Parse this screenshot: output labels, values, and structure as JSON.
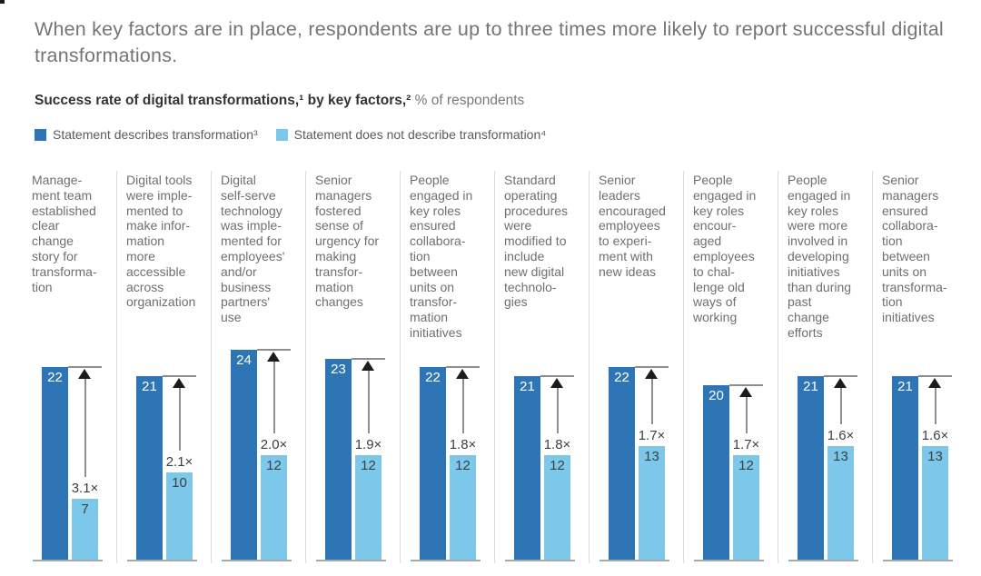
{
  "page": {
    "title": "When key factors are in place, respondents are up to three times more likely to report successful digital transformations.",
    "subtitle_bold": "Success rate of digital transformations,¹ by key factors,²",
    "subtitle_regular": " % of respondents"
  },
  "legend": [
    {
      "icon": "legend-swatch-dark-blue",
      "color": "#2e75b5",
      "label": "Statement describes transformation³"
    },
    {
      "icon": "legend-swatch-light-blue",
      "color": "#7cc8ea",
      "label": "Statement does not describe transformation⁴"
    }
  ],
  "colors": {
    "dark_blue": "#2e75b5",
    "light_blue": "#7cc8ea",
    "arrow_black": "#1c1c1c",
    "line_gray": "#8e8e8e",
    "baseline_gray": "#a9a9a9",
    "divider_gray": "#dbdbdb",
    "text_gray": "#6e6f72"
  },
  "chart_data": {
    "type": "bar",
    "title": "Success rate of digital transformations, by key factors, % of respondents",
    "categories": [
      "Management team established clear change story for transformation",
      "Digital tools were implemented to make information more accessible across organization",
      "Digital self-serve technology was implemented for employees' and/or business partners' use",
      "Senior managers fostered sense of urgency for making transformation changes",
      "People engaged in key roles ensured collaboration between units on transformation initiatives",
      "Standard operating procedures were modified to include new digital technologies",
      "Senior leaders encouraged employees to experiment with new ideas",
      "People engaged in key roles encouraged employees to challenge old ways of working",
      "People engaged in key roles were more involved in developing initiatives than during past change efforts",
      "Senior managers ensured collaboration between units on transformation initiatives"
    ],
    "category_display_lines": [
      [
        "Manage-",
        "ment team",
        "established",
        "clear",
        "change",
        "story for",
        "transforma-",
        "tion"
      ],
      [
        "Digital tools",
        "were imple-",
        "mented to",
        "make infor-",
        "mation",
        "more",
        "accessible",
        "across",
        "organization"
      ],
      [
        "Digital",
        "self-serve",
        "technology",
        "was imple-",
        "mented for",
        "employees'",
        "and/or",
        "business",
        "partners'",
        "use"
      ],
      [
        "Senior",
        "managers",
        "fostered",
        "sense of",
        "urgency for",
        "making",
        "transfor-",
        "mation",
        "changes"
      ],
      [
        "People",
        "engaged in",
        "key roles",
        "ensured",
        "collabora-",
        "tion",
        "between",
        "units on",
        "transfor-",
        "mation",
        "initiatives"
      ],
      [
        "Standard",
        "operating",
        "procedures",
        "were",
        "modified to",
        "include",
        "new digital",
        "technolo-",
        "gies"
      ],
      [
        "Senior",
        "leaders",
        "encouraged",
        "employees",
        "to experi-",
        "ment with",
        "new ideas"
      ],
      [
        "People",
        "engaged in",
        "key roles",
        "encour-",
        "aged",
        "employees",
        "to chal-",
        "lenge old",
        "ways of",
        "working"
      ],
      [
        "People",
        "engaged in",
        "key roles",
        "were more",
        "involved in",
        "developing",
        "initiatives",
        "than during",
        "past",
        "change",
        "efforts"
      ],
      [
        "Senior",
        "managers",
        "ensured",
        "collabora-",
        "tion",
        "between",
        "units on",
        "transforma-",
        "tion",
        "initiatives"
      ]
    ],
    "series": [
      {
        "name": "Statement describes transformation",
        "color": "#2e75b5",
        "values": [
          22,
          21,
          24,
          23,
          22,
          21,
          22,
          20,
          21,
          21
        ]
      },
      {
        "name": "Statement does not describe transformation",
        "color": "#7cc8ea",
        "values": [
          7,
          10,
          12,
          12,
          12,
          12,
          13,
          12,
          13,
          13
        ]
      }
    ],
    "multipliers": [
      "3.1×",
      "2.1×",
      "2.0×",
      "1.9×",
      "1.8×",
      "1.8×",
      "1.7×",
      "1.7×",
      "1.6×",
      "1.6×"
    ],
    "unit": "% of respondents",
    "ylim": [
      0,
      25
    ],
    "grid": false,
    "legend_position": "top"
  }
}
